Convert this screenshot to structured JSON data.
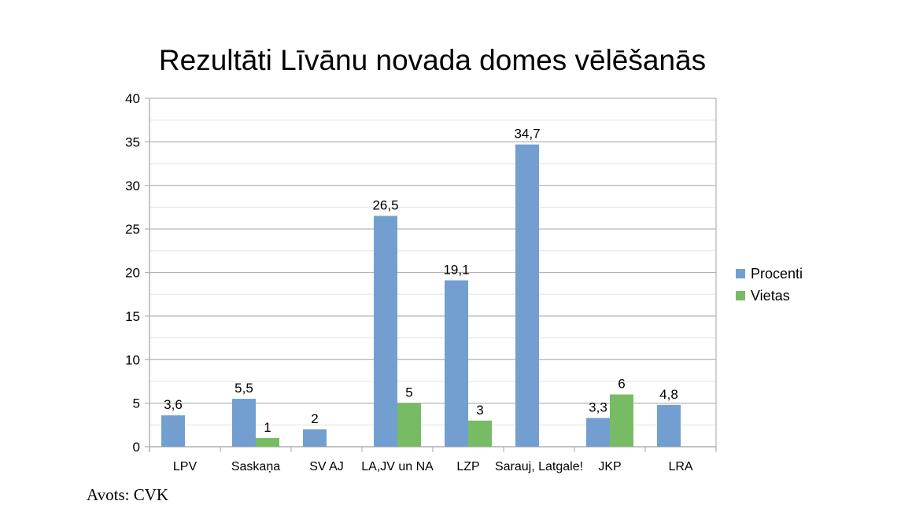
{
  "chart_data": {
    "type": "bar",
    "title": "Rezultāti Līvānu novada domes vēlēšanās",
    "xlabel": "",
    "ylabel": "",
    "ylim": [
      0,
      40
    ],
    "yticks": [
      "0",
      "5",
      "10",
      "15",
      "20",
      "25",
      "30",
      "35",
      "40"
    ],
    "ytick_values": [
      0,
      5,
      10,
      15,
      20,
      25,
      30,
      35,
      40
    ],
    "minor_grid_step": 2.5,
    "grid": true,
    "legend_position": "right",
    "categories": [
      "LPV",
      "Saskaņa",
      "SV AJ",
      "LA,JV un NA",
      "LZP",
      "Sarauj, Latgale!",
      "JKP",
      "LRA"
    ],
    "series": [
      {
        "name": "Procenti",
        "color": "#729fcf",
        "values": [
          3.6,
          5.5,
          2,
          26.5,
          19.1,
          34.7,
          3.3,
          4.8
        ],
        "labels": [
          "3,6",
          "5,5",
          "2",
          "26,5",
          "19,1",
          "34,7",
          "3,3",
          "4,8"
        ]
      },
      {
        "name": "Vietas",
        "color": "#77bc65",
        "values": [
          null,
          1,
          null,
          5,
          3,
          null,
          6,
          null
        ],
        "labels": [
          null,
          "1",
          null,
          "5",
          "3",
          null,
          "6",
          null
        ]
      }
    ]
  },
  "source": "Avots: CVK"
}
